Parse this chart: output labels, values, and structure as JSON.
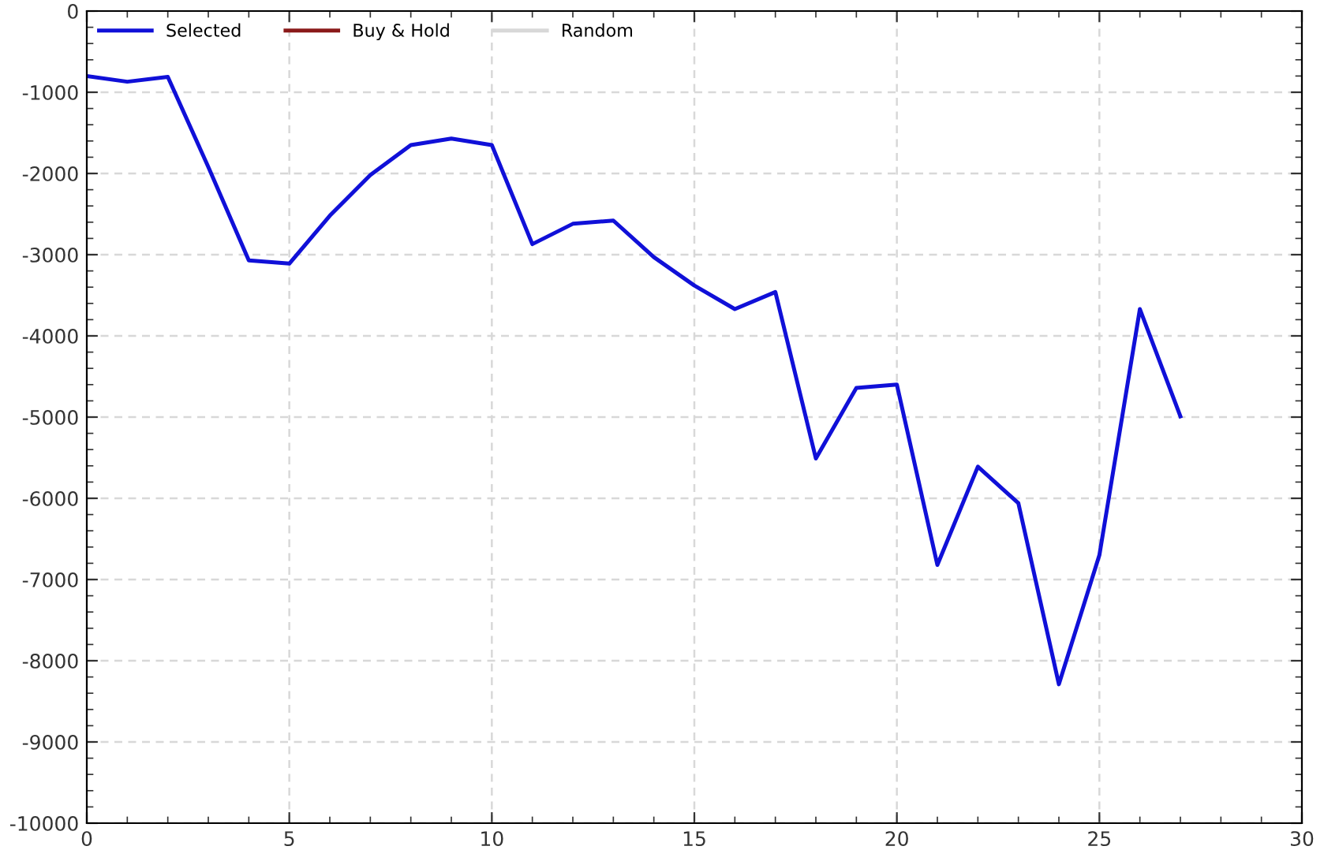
{
  "chart_data": {
    "type": "line",
    "x": [
      0,
      1,
      2,
      3,
      4,
      5,
      6,
      7,
      8,
      9,
      10,
      11,
      12,
      13,
      14,
      15,
      16,
      17,
      18,
      19,
      20,
      21,
      22,
      23,
      24,
      25,
      26,
      27
    ],
    "series": [
      {
        "name": "Selected",
        "color": "#1010d8",
        "values": [
          -800,
          -870,
          -810,
          -1920,
          -3070,
          -3110,
          -2520,
          -2020,
          -1650,
          -1570,
          -1650,
          -2870,
          -2620,
          -2580,
          -3030,
          -3380,
          -3670,
          -3460,
          -5510,
          -4640,
          -4600,
          -6820,
          -5610,
          -6060,
          -8290,
          -6700,
          -3670,
          -4990
        ]
      },
      {
        "name": "Buy & Hold",
        "color": "#8b1a1a",
        "values": [
          null,
          null,
          null,
          null,
          null,
          null,
          null,
          null,
          null,
          null,
          null,
          null,
          null,
          null,
          null,
          null,
          null,
          null,
          null,
          null,
          null,
          null,
          null,
          null,
          null,
          null,
          null,
          null
        ]
      },
      {
        "name": "Random",
        "color": "#d8d8d8",
        "values": [
          null,
          null,
          null,
          null,
          null,
          null,
          null,
          null,
          null,
          null,
          null,
          null,
          null,
          null,
          null,
          null,
          null,
          null,
          null,
          null,
          null,
          null,
          null,
          null,
          null,
          null,
          null,
          null
        ]
      }
    ],
    "xlim": [
      0,
      30
    ],
    "xticks": [
      0,
      5,
      10,
      15,
      20,
      25,
      30
    ],
    "ylim": [
      -10000,
      0
    ],
    "yticks": [
      -10000,
      -9000,
      -8000,
      -7000,
      -6000,
      -5000,
      -4000,
      -3000,
      -2000,
      -1000,
      0
    ],
    "grid": true,
    "legend": "top left",
    "marker": "none",
    "line_style": "solid"
  }
}
